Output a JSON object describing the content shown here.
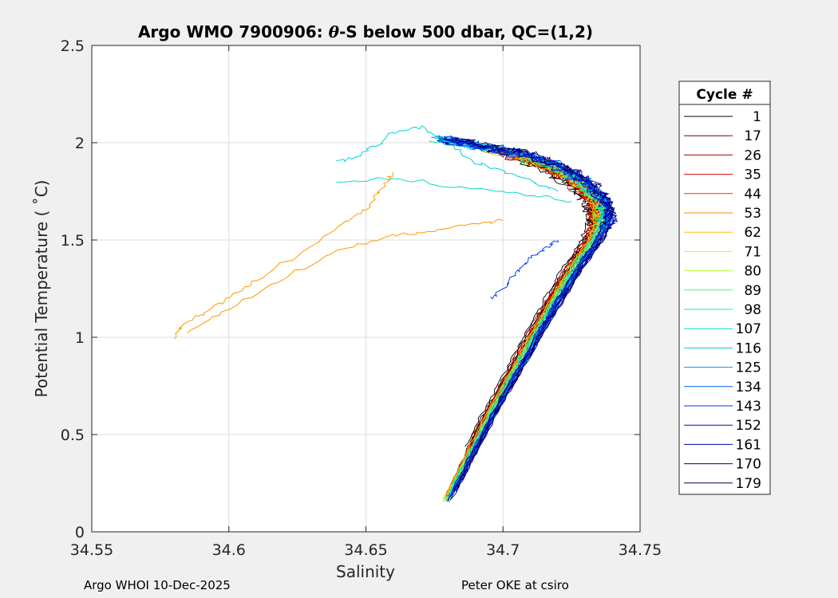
{
  "chart_data": {
    "type": "line",
    "title": "Argo WMO 7900906: θ-S below 500 dbar,  QC=(1,2)",
    "title_parts": {
      "before": "Argo WMO 7900906: ",
      "symbol": "θ",
      "after": "-S below 500 dbar,  QC=(1,2)"
    },
    "xlabel": "Salinity",
    "ylabel": "Potential Temperature ( ˚C)",
    "xlim": [
      34.55,
      34.75
    ],
    "ylim": [
      0,
      2.5
    ],
    "xticks": [
      "34.55",
      "34.6",
      "34.65",
      "34.7",
      "34.75"
    ],
    "xtick_values": [
      34.55,
      34.6,
      34.65,
      34.7,
      34.75
    ],
    "yticks": [
      "0",
      "0.5",
      "1",
      "1.5",
      "2",
      "2.5"
    ],
    "ytick_values": [
      0,
      0.5,
      1,
      1.5,
      2,
      2.5
    ],
    "grid": true,
    "legend_title": "Cycle #",
    "legend_position": "outside-right",
    "colormap": "jet",
    "series": [
      {
        "name": "1",
        "color": "#000000"
      },
      {
        "name": "17",
        "color": "#800000"
      },
      {
        "name": "26",
        "color": "#b00000"
      },
      {
        "name": "35",
        "color": "#e00000"
      },
      {
        "name": "44",
        "color": "#ff2a00"
      },
      {
        "name": "53",
        "color": "#ff8800"
      },
      {
        "name": "62",
        "color": "#ffc000"
      },
      {
        "name": "71",
        "color": "#e8f000"
      },
      {
        "name": "80",
        "color": "#a8ff30"
      },
      {
        "name": "89",
        "color": "#50ff60"
      },
      {
        "name": "98",
        "color": "#18f090"
      },
      {
        "name": "107",
        "color": "#00e0c0"
      },
      {
        "name": "116",
        "color": "#00c0e8"
      },
      {
        "name": "125",
        "color": "#0090ff"
      },
      {
        "name": "134",
        "color": "#0060ff"
      },
      {
        "name": "143",
        "color": "#0030f0"
      },
      {
        "name": "152",
        "color": "#0000d0"
      },
      {
        "name": "161",
        "color": "#0000a0"
      },
      {
        "name": "170",
        "color": "#000080"
      },
      {
        "name": "179",
        "color": "#000060"
      }
    ],
    "bundle_shape": {
      "x": [
        34.679,
        34.686,
        34.695,
        34.705,
        34.713,
        34.72,
        34.727,
        34.733,
        34.736,
        34.735,
        34.728,
        34.718,
        34.705,
        34.69,
        34.675
      ],
      "y": [
        0.15,
        0.35,
        0.6,
        0.85,
        1.05,
        1.22,
        1.38,
        1.5,
        1.6,
        1.7,
        1.8,
        1.88,
        1.94,
        1.98,
        2.02
      ]
    },
    "outlier_series": [
      {
        "cycle": "53",
        "color": "#ff9900",
        "x": [
          34.58,
          34.583,
          34.59,
          34.6,
          34.61,
          34.625,
          34.64,
          34.65,
          34.655,
          34.66
        ],
        "y": [
          1.0,
          1.07,
          1.12,
          1.2,
          1.3,
          1.42,
          1.57,
          1.66,
          1.75,
          1.85
        ]
      },
      {
        "cycle": "53",
        "color": "#ff9900",
        "x": [
          34.585,
          34.6,
          34.62,
          34.64,
          34.66,
          34.675,
          34.69,
          34.7
        ],
        "y": [
          1.03,
          1.15,
          1.3,
          1.45,
          1.52,
          1.55,
          1.58,
          1.6
        ]
      },
      {
        "cycle": "116",
        "color": "#00d0e0",
        "x": [
          34.64,
          34.65,
          34.66,
          34.67,
          34.68,
          34.69,
          34.7,
          34.71,
          34.72
        ],
        "y": [
          1.9,
          1.95,
          2.05,
          2.08,
          2.0,
          1.9,
          1.85,
          1.8,
          1.75
        ]
      },
      {
        "cycle": "116",
        "color": "#10d8c8",
        "x": [
          34.64,
          34.66,
          34.68,
          34.7,
          34.715,
          34.725
        ],
        "y": [
          1.8,
          1.82,
          1.78,
          1.75,
          1.72,
          1.7
        ]
      },
      {
        "cycle": "143",
        "color": "#0040f0",
        "x": [
          34.695,
          34.7,
          34.705,
          34.71,
          34.715,
          34.72
        ],
        "y": [
          1.2,
          1.25,
          1.33,
          1.4,
          1.45,
          1.5
        ]
      }
    ]
  },
  "footer": {
    "left": "Argo WHOI 10-Dec-2025",
    "right": "Peter OKE at csiro"
  }
}
